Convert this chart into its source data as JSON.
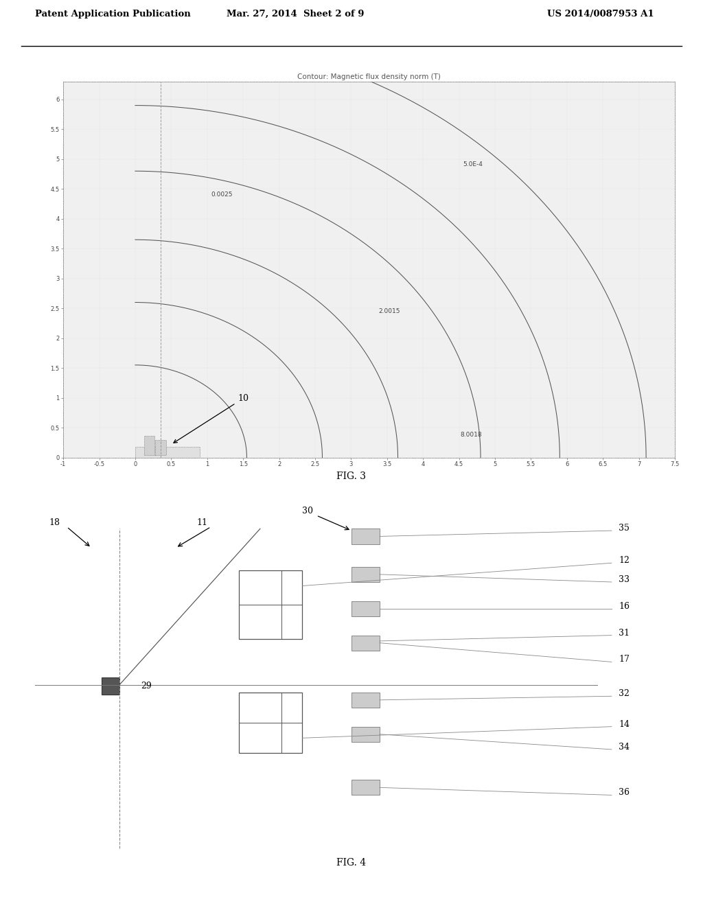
{
  "header_left": "Patent Application Publication",
  "header_mid": "Mar. 27, 2014  Sheet 2 of 9",
  "header_right": "US 2014/0087953 A1",
  "fig3_title": "Contour: Magnetic flux density norm (T)",
  "fig3_xlabel_ticks": [
    -1,
    -0.5,
    0,
    0.5,
    1,
    1.5,
    2,
    2.5,
    3,
    3.5,
    4,
    4.5,
    5,
    5.5,
    6,
    6.5,
    7,
    7.5
  ],
  "fig3_ylabel_ticks": [
    0,
    0.5,
    1,
    1.5,
    2,
    2.5,
    3,
    3.5,
    4,
    4.5,
    5,
    5.5,
    6
  ],
  "fig3_xlim": [
    -1,
    7.5
  ],
  "fig3_ylim": [
    0,
    6.3
  ],
  "fig3_label": "FIG. 3",
  "fig4_label": "FIG. 4",
  "background_color": "#ffffff",
  "line_color": "#555555",
  "fig3_radii": [
    1.55,
    2.6,
    3.65,
    4.8,
    5.9,
    7.1
  ],
  "contour_label_5e4": [
    4.55,
    4.88
  ],
  "contour_label_0025": [
    1.05,
    4.38
  ],
  "contour_label_20015": [
    3.38,
    2.42
  ],
  "contour_label_80018": [
    4.52,
    0.35
  ]
}
